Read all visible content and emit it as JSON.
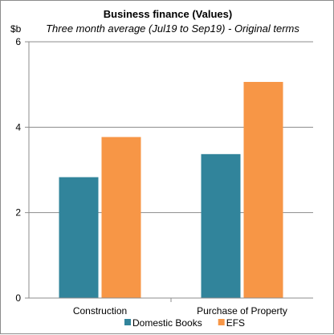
{
  "chart_data": {
    "type": "bar",
    "title": "Business finance (Values)",
    "subtitle": "Three month average (Jul19 to Sep19) - Original terms",
    "ylabel": "$b",
    "xlabel": "",
    "ylim": [
      0,
      6
    ],
    "yticks": [
      0,
      2,
      4,
      6
    ],
    "grid": true,
    "legend_position": "bottom",
    "categories": [
      "Construction",
      "Purchase of Property"
    ],
    "series": [
      {
        "name": "Domestic Books",
        "color": "#31849b",
        "values": [
          2.83,
          3.37
        ]
      },
      {
        "name": "EFS",
        "color": "#f79646",
        "values": [
          3.77,
          5.06
        ]
      }
    ]
  }
}
